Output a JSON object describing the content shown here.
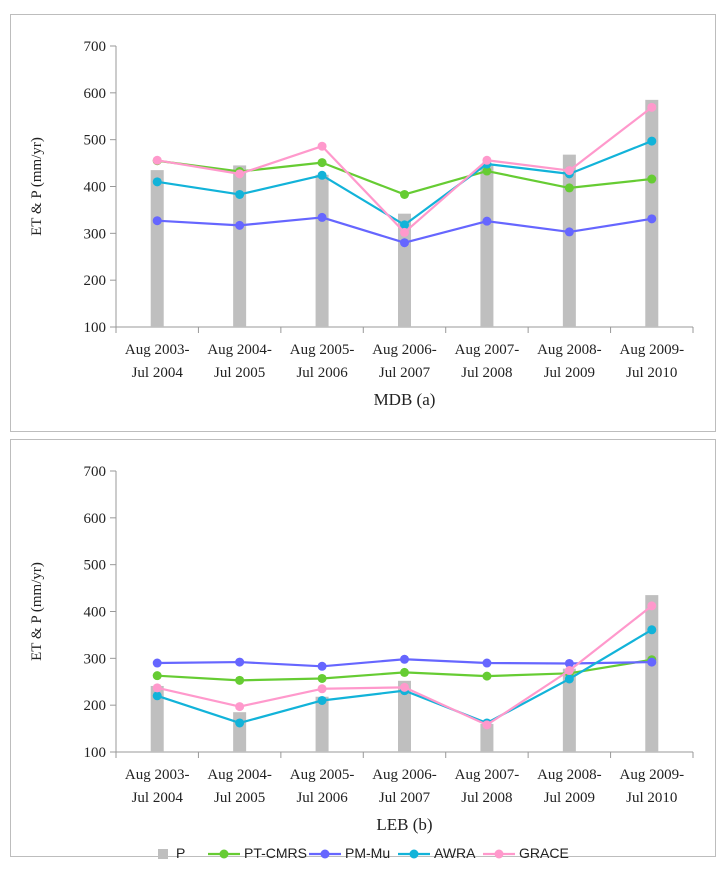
{
  "chart_data": [
    {
      "type": "bar+line",
      "caption": "MDB (a)",
      "ylabel": "ET & P (mm/yr)",
      "ylim": [
        100,
        700
      ],
      "yticks": [
        100,
        200,
        300,
        400,
        500,
        600,
        700
      ],
      "categories": [
        [
          "Aug 2003-",
          "Jul 2004"
        ],
        [
          "Aug 2004-",
          "Jul 2005"
        ],
        [
          "Aug 2005-",
          "Jul 2006"
        ],
        [
          "Aug 2006-",
          "Jul 2007"
        ],
        [
          "Aug 2007-",
          "Jul 2008"
        ],
        [
          "Aug 2008-",
          "Jul 2009"
        ],
        [
          "Aug 2009-",
          "Jul 2010"
        ]
      ],
      "bar_series": {
        "name": "P",
        "values": [
          435,
          445,
          425,
          342,
          445,
          468,
          585
        ]
      },
      "line_series": [
        {
          "name": "PT-CMRS",
          "values": [
            455,
            432,
            451,
            383,
            433,
            397,
            416
          ]
        },
        {
          "name": "PM-Mu",
          "values": [
            327,
            317,
            334,
            280,
            326,
            303,
            331
          ]
        },
        {
          "name": "AWRA",
          "values": [
            410,
            383,
            424,
            318,
            448,
            427,
            497
          ]
        },
        {
          "name": "GRACE",
          "values": [
            456,
            427,
            486,
            302,
            456,
            434,
            569
          ]
        }
      ]
    },
    {
      "type": "bar+line",
      "caption": "LEB (b)",
      "ylabel": "ET & P (mm/yr)",
      "ylim": [
        100,
        700
      ],
      "yticks": [
        100,
        200,
        300,
        400,
        500,
        600,
        700
      ],
      "categories": [
        [
          "Aug 2003-",
          "Jul 2004"
        ],
        [
          "Aug 2004-",
          "Jul 2005"
        ],
        [
          "Aug 2005-",
          "Jul 2006"
        ],
        [
          "Aug 2006-",
          "Jul 2007"
        ],
        [
          "Aug 2007-",
          "Jul 2008"
        ],
        [
          "Aug 2008-",
          "Jul 2009"
        ],
        [
          "Aug 2009-",
          "Jul 2010"
        ]
      ],
      "bar_series": {
        "name": "P",
        "values": [
          241,
          185,
          218,
          252,
          160,
          278,
          435
        ]
      },
      "line_series": [
        {
          "name": "PT-CMRS",
          "values": [
            263,
            253,
            257,
            270,
            262,
            268,
            297
          ]
        },
        {
          "name": "PM-Mu",
          "values": [
            290,
            292,
            283,
            298,
            290,
            289,
            292
          ]
        },
        {
          "name": "AWRA",
          "values": [
            220,
            162,
            210,
            231,
            162,
            256,
            361
          ]
        },
        {
          "name": "GRACE",
          "values": [
            237,
            197,
            235,
            238,
            158,
            274,
            412
          ]
        }
      ]
    }
  ],
  "legend": [
    "P",
    "PT-CMRS",
    "PM-Mu",
    "AWRA",
    "GRACE"
  ],
  "colors": {
    "P": "#bfbfbf",
    "PT-CMRS": "#66cc33",
    "PM-Mu": "#6666ff",
    "AWRA": "#12b3d9",
    "GRACE": "#ff99cc",
    "axis": "#999999"
  }
}
